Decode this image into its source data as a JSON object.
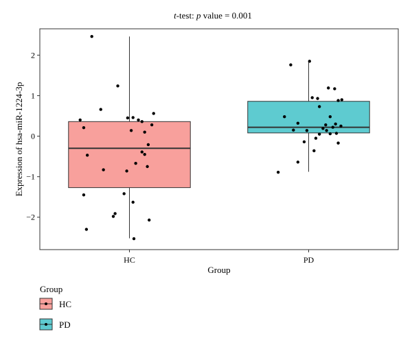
{
  "chart_data": {
    "type": "box",
    "title_prefix": "t",
    "title_mid": "-test: ",
    "title_p": "p",
    "title_rest": " value = 0.001",
    "xlabel": "Group",
    "ylabel": "Expression of hsa-miR-1224-3p",
    "categories": [
      "HC",
      "PD"
    ],
    "ylim": [
      -2.8,
      2.65
    ],
    "yticks": [
      -2,
      -1,
      0,
      1,
      2
    ],
    "grid": false,
    "legend": {
      "title": "Group",
      "position": "bottom-left",
      "items": [
        {
          "label": "HC",
          "color": "#F8A09C"
        },
        {
          "label": "PD",
          "color": "#5ECBD0"
        }
      ]
    },
    "series": [
      {
        "name": "HC",
        "color": "#F8A09C",
        "box": {
          "min": -2.52,
          "q1": -1.27,
          "median": -0.3,
          "q3": 0.36,
          "max": 2.46
        },
        "points": [
          [
            -0.42,
            2.46
          ],
          [
            -0.13,
            1.24
          ],
          [
            -0.32,
            0.66
          ],
          [
            -0.55,
            0.4
          ],
          [
            -0.51,
            0.21
          ],
          [
            -0.47,
            -0.47
          ],
          [
            -0.29,
            -0.83
          ],
          [
            -0.51,
            -1.45
          ],
          [
            -0.48,
            -2.3
          ],
          [
            -0.06,
            -1.42
          ],
          [
            -0.02,
            0.45
          ],
          [
            0.04,
            0.46
          ],
          [
            0.1,
            0.4
          ],
          [
            0.27,
            0.56
          ],
          [
            0.14,
            0.36
          ],
          [
            0.17,
            0.1
          ],
          [
            0.25,
            0.28
          ],
          [
            0.21,
            -0.21
          ],
          [
            0.14,
            -0.39
          ],
          [
            0.2,
            -0.75
          ],
          [
            0.07,
            -0.67
          ],
          [
            0.02,
            0.14
          ],
          [
            -0.03,
            -0.86
          ],
          [
            0.04,
            -1.63
          ],
          [
            -0.16,
            -1.91
          ],
          [
            -0.18,
            -1.98
          ],
          [
            0.22,
            -2.07
          ],
          [
            0.05,
            -2.53
          ],
          [
            0.17,
            -0.45
          ]
        ]
      },
      {
        "name": "PD",
        "color": "#5ECBD0",
        "box": {
          "min": -0.88,
          "q1": 0.08,
          "median": 0.22,
          "q3": 0.86,
          "max": 1.85
        },
        "points": [
          [
            -0.2,
            1.76
          ],
          [
            0.01,
            1.85
          ],
          [
            0.22,
            1.19
          ],
          [
            0.29,
            1.17
          ],
          [
            0.37,
            0.9
          ],
          [
            0.33,
            0.88
          ],
          [
            0.04,
            0.95
          ],
          [
            0.12,
            0.73
          ],
          [
            0.24,
            0.48
          ],
          [
            0.3,
            0.3
          ],
          [
            0.19,
            0.28
          ],
          [
            0.27,
            0.22
          ],
          [
            0.36,
            0.25
          ],
          [
            0.31,
            0.07
          ],
          [
            0.24,
            0.06
          ],
          [
            -0.12,
            0.32
          ],
          [
            -0.17,
            0.15
          ],
          [
            -0.02,
            0.14
          ],
          [
            0.12,
            0.05
          ],
          [
            0.08,
            -0.05
          ],
          [
            -0.05,
            -0.14
          ],
          [
            0.33,
            -0.17
          ],
          [
            -0.27,
            0.48
          ],
          [
            0.06,
            -0.36
          ],
          [
            -0.12,
            -0.64
          ],
          [
            -0.34,
            -0.89
          ],
          [
            0.16,
            0.19
          ],
          [
            0.1,
            0.93
          ],
          [
            0.2,
            0.14
          ]
        ]
      }
    ]
  }
}
